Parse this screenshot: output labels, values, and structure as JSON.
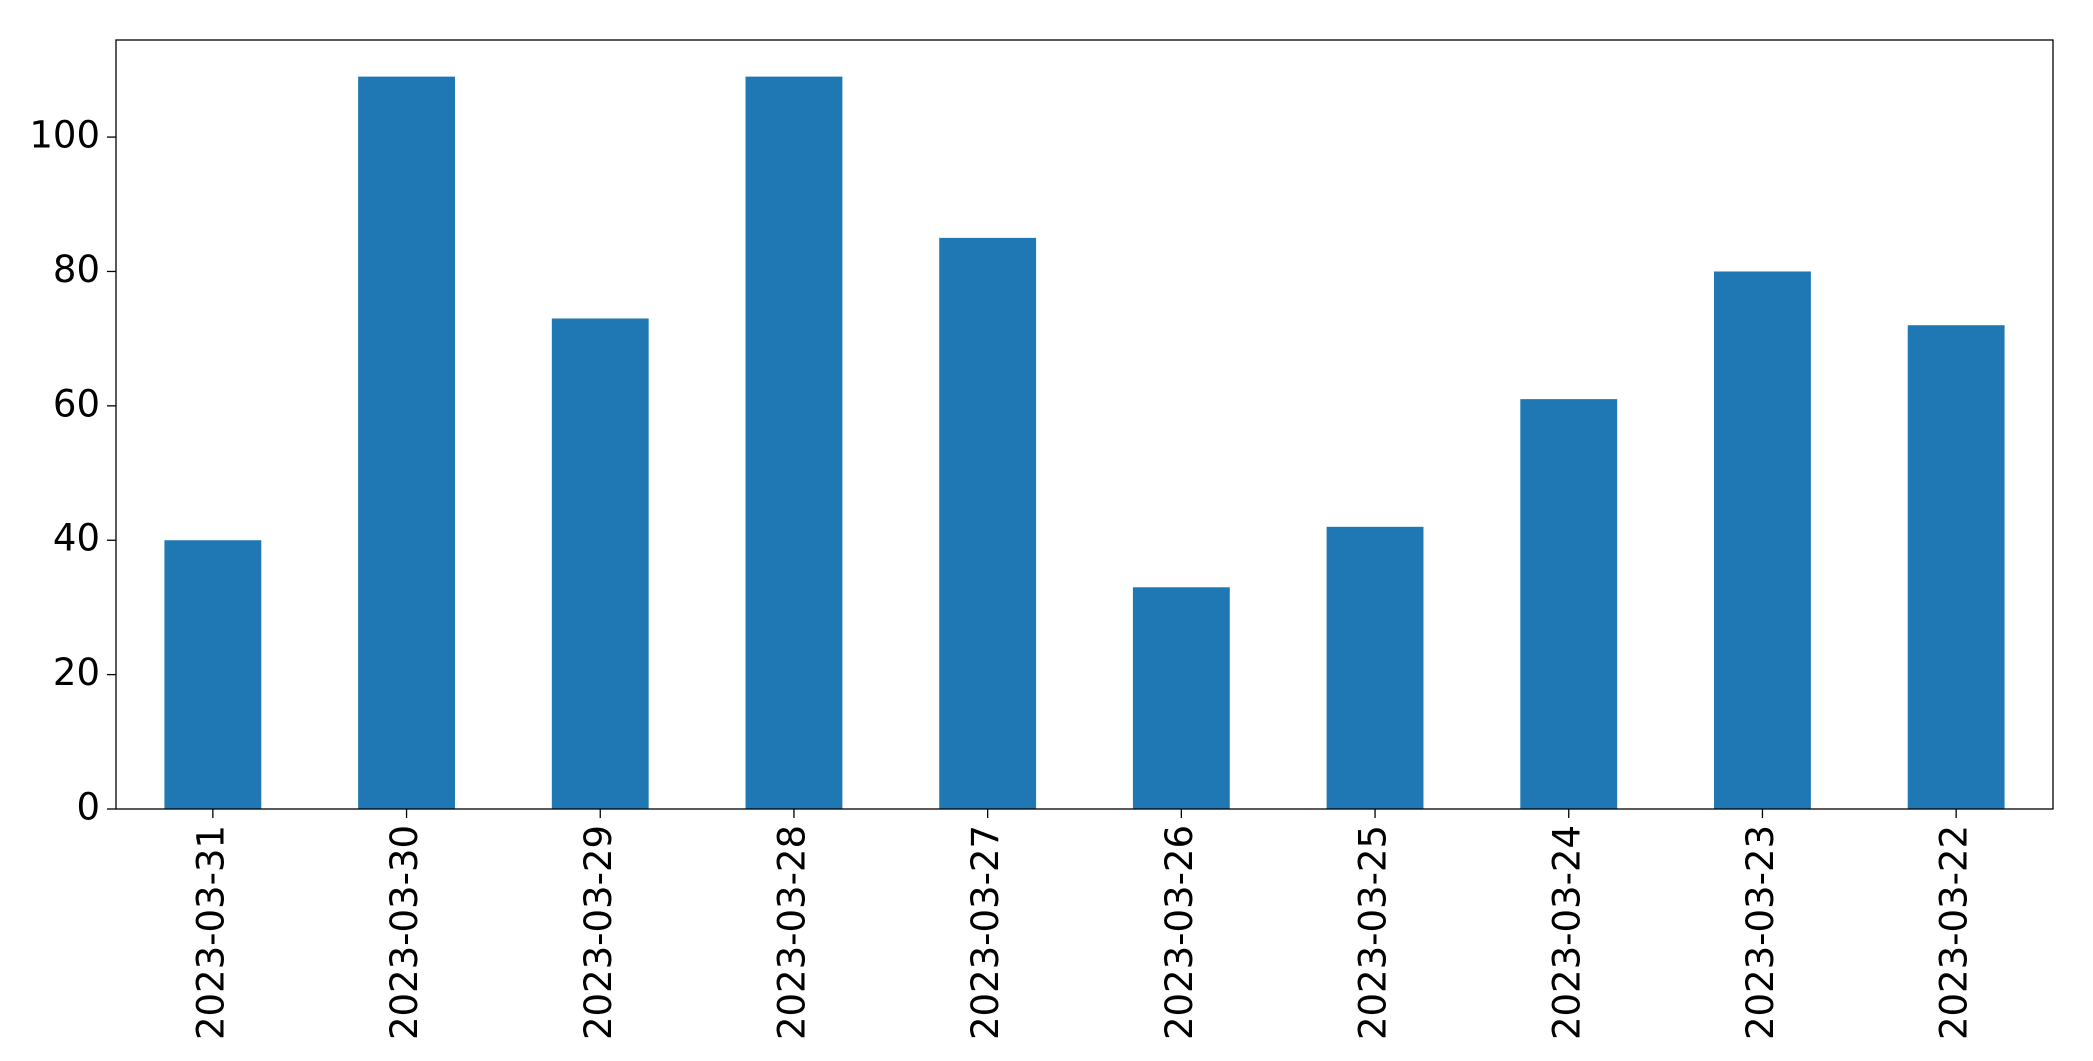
{
  "chart_data": {
    "type": "bar",
    "categories": [
      "2023-03-31",
      "2023-03-30",
      "2023-03-29",
      "2023-03-28",
      "2023-03-27",
      "2023-03-26",
      "2023-03-25",
      "2023-03-24",
      "2023-03-23",
      "2023-03-22"
    ],
    "values": [
      40,
      109,
      73,
      109,
      85,
      33,
      42,
      61,
      80,
      72
    ],
    "color": "#1f77b4",
    "ylim": [
      0,
      114.45
    ],
    "yticks": [
      0,
      20,
      40,
      60,
      80,
      100
    ],
    "grid": false
  }
}
